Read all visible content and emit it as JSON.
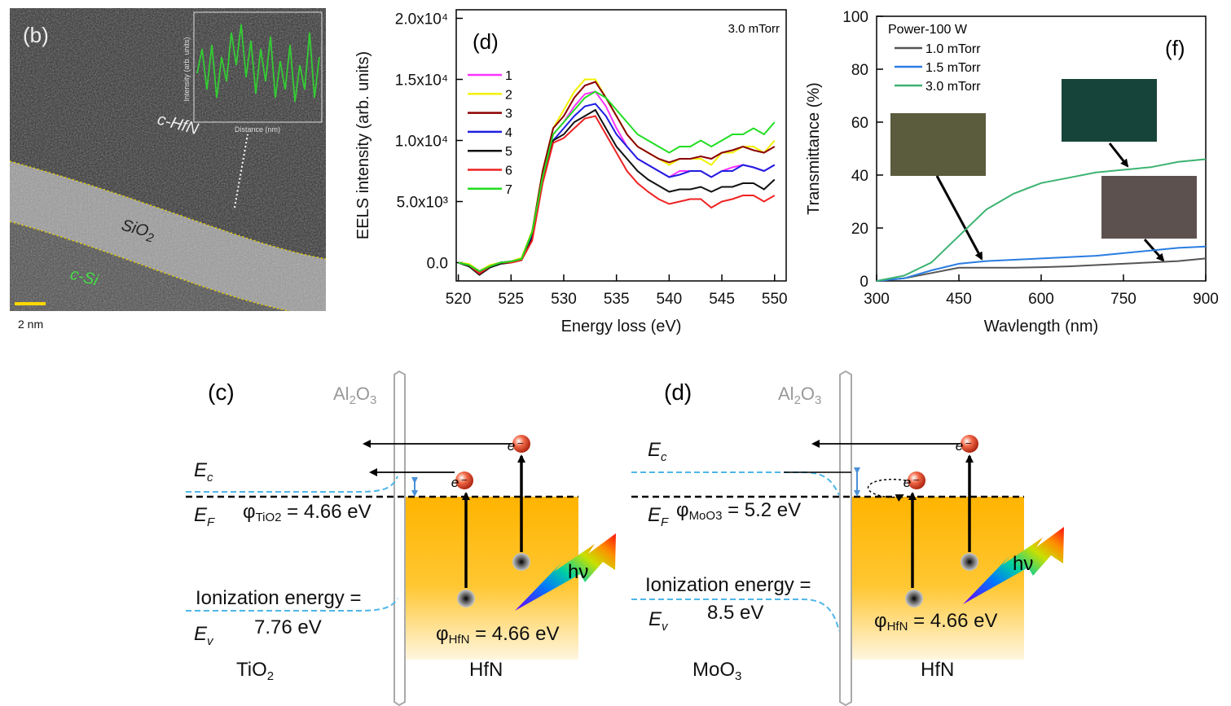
{
  "tem": {
    "label": "(b)",
    "phase_top": "c-HfN",
    "phase_mid": {
      "sym": "SiO",
      "sub": "2"
    },
    "phase_bottom": "c-Si",
    "scale_bar": "2 nm",
    "inset_ylabel": "Intensity (arb. units)",
    "inset_xlabel": "Distance (nm)"
  },
  "chart_data": [
    {
      "type": "line",
      "panel_label": "(d)",
      "annotation": "3.0 mTorr",
      "x_label": "Energy loss (eV)",
      "y_label": "EELS intensity (arb. units)",
      "xlim": [
        519.8,
        551.1
      ],
      "ylim": [
        -1500,
        20700
      ],
      "xticks": [
        520,
        525,
        530,
        535,
        540,
        545,
        550
      ],
      "yticks": [
        {
          "value": 0,
          "label": "0.0"
        },
        {
          "value": 5000,
          "label": "5.0x10³"
        },
        {
          "value": 10000,
          "label": "1.0x10⁴"
        },
        {
          "value": 15000,
          "label": "1.5x10⁴"
        },
        {
          "value": 20000,
          "label": "2.0x10⁴"
        }
      ],
      "legend": "upper left",
      "x": [
        520,
        521,
        522,
        523,
        524,
        525,
        526,
        527,
        528,
        529,
        530,
        531,
        532,
        533,
        534,
        535,
        536,
        537,
        538,
        539,
        540,
        541,
        542,
        543,
        544,
        545,
        546,
        547,
        548,
        549,
        550
      ],
      "series": [
        {
          "name": "1",
          "color": "#ff33ff",
          "values": [
            0,
            -200,
            -800,
            -300,
            0,
            100,
            300,
            2300,
            7000,
            10500,
            11500,
            12800,
            13800,
            14000,
            12800,
            11000,
            9500,
            8500,
            8000,
            7500,
            7000,
            7500,
            7500,
            7500,
            7000,
            7500,
            7800,
            8000,
            7800,
            7500,
            8000
          ]
        },
        {
          "name": "2",
          "color": "#f2f200",
          "values": [
            0,
            -100,
            -700,
            -200,
            0,
            100,
            400,
            2600,
            7500,
            11000,
            12500,
            14000,
            15000,
            15000,
            13500,
            12000,
            10500,
            9500,
            9000,
            8500,
            8000,
            8500,
            8500,
            8500,
            8000,
            9000,
            9000,
            9500,
            9500,
            9000,
            10000
          ]
        },
        {
          "name": "3",
          "color": "#8b0000",
          "values": [
            0,
            -200,
            -700,
            -300,
            0,
            100,
            300,
            2500,
            7500,
            11000,
            12000,
            13500,
            14500,
            14800,
            13500,
            12000,
            10500,
            9500,
            9000,
            8500,
            8200,
            8500,
            8500,
            8700,
            8500,
            9000,
            9200,
            9500,
            9200,
            9000,
            9500
          ]
        },
        {
          "name": "4",
          "color": "#1f1fe0",
          "values": [
            0,
            -300,
            -900,
            -300,
            0,
            100,
            200,
            2200,
            7000,
            10000,
            11000,
            12000,
            12800,
            13000,
            12000,
            10500,
            9500,
            8500,
            8000,
            7500,
            7000,
            7200,
            7500,
            7500,
            7000,
            7500,
            7500,
            8000,
            7800,
            7500,
            8000
          ]
        },
        {
          "name": "5",
          "color": "#111111",
          "values": [
            0,
            -300,
            -1000,
            -400,
            -100,
            0,
            200,
            2000,
            7000,
            10000,
            10500,
            11500,
            12000,
            12500,
            11000,
            9500,
            8500,
            7500,
            6800,
            6300,
            5800,
            6000,
            6000,
            6200,
            5800,
            6200,
            6200,
            6500,
            6500,
            6000,
            6800
          ]
        },
        {
          "name": "6",
          "color": "#ee2222",
          "values": [
            0,
            -200,
            -900,
            -300,
            0,
            0,
            200,
            1800,
            6500,
            9800,
            10200,
            11000,
            11800,
            12000,
            10500,
            9000,
            7500,
            6500,
            5800,
            5200,
            4800,
            5000,
            5200,
            5200,
            4500,
            5000,
            5200,
            5500,
            5500,
            5000,
            5500
          ]
        },
        {
          "name": "7",
          "color": "#22dd22",
          "values": [
            0,
            -200,
            -700,
            -300,
            0,
            100,
            300,
            2500,
            7000,
            10500,
            11500,
            12500,
            13500,
            14000,
            13500,
            12500,
            11500,
            10500,
            10000,
            9500,
            9000,
            9500,
            9500,
            10000,
            9500,
            10000,
            10500,
            10500,
            11000,
            10500,
            11500
          ]
        }
      ]
    },
    {
      "type": "line",
      "panel_label": "(f)",
      "x_label": "Wavlength (nm)",
      "y_label": "Transmittance (%)",
      "xlim": [
        300,
        900
      ],
      "ylim": [
        0,
        100
      ],
      "xticks": [
        300,
        450,
        600,
        750,
        900
      ],
      "yticks": [
        0,
        20,
        40,
        60,
        80,
        100
      ],
      "legend": "upper left",
      "legend_title": "Power-100 W",
      "x": [
        300,
        350,
        400,
        450,
        500,
        550,
        600,
        650,
        700,
        750,
        800,
        850,
        900
      ],
      "series": [
        {
          "name": "1.0 mTorr",
          "color": "#555555",
          "values": [
            0,
            1,
            3,
            5,
            5,
            5,
            5.2,
            5.5,
            6,
            6.5,
            7,
            7.5,
            8.5
          ]
        },
        {
          "name": "1.5 mTorr",
          "color": "#2a7de1",
          "values": [
            0,
            1,
            4,
            6.5,
            7.5,
            8,
            8.5,
            9,
            9.5,
            10.5,
            11.5,
            12.5,
            13
          ]
        },
        {
          "name": "3.0 mTorr",
          "color": "#3cb371",
          "values": [
            0,
            2,
            7,
            17,
            27,
            33,
            37,
            39,
            41,
            42,
            43,
            45,
            46
          ]
        }
      ]
    }
  ],
  "band_diagrams": [
    {
      "label": "(c)",
      "barrier": {
        "sym": "Al",
        "s1": "2",
        "mid": "O",
        "s2": "3"
      },
      "ec": {
        "sym": "E",
        "sub": "c"
      },
      "ef": {
        "sym": "E",
        "sub": "F"
      },
      "ev": {
        "sym": "E",
        "sub": "v"
      },
      "phi_left": {
        "sym": "φ",
        "sub": "TiO2",
        "rest": " = 4.66 eV"
      },
      "ionization": "Ionization energy =",
      "ionization_value": "7.76 eV",
      "left_material": {
        "sym": "TiO",
        "sub": "2"
      },
      "right_material": "HfN",
      "phi_right": {
        "sym": "φ",
        "sub": "HfN",
        "rest": " = 4.66 eV"
      },
      "photon": "hν",
      "electrons": [
        "e⁻",
        "e⁻"
      ]
    },
    {
      "label": "(d)",
      "barrier": {
        "sym": "Al",
        "s1": "2",
        "mid": "O",
        "s2": "3"
      },
      "ec": {
        "sym": "E",
        "sub": "c"
      },
      "ef": {
        "sym": "E",
        "sub": "F"
      },
      "ev": {
        "sym": "E",
        "sub": "v"
      },
      "phi_left": {
        "sym": "φ",
        "sub": "MoO3",
        "rest": " = 5.2 eV"
      },
      "ionization": "Ionization energy =",
      "ionization_value": "8.5 eV",
      "left_material": {
        "sym": "MoO",
        "sub": "3"
      },
      "right_material": "HfN",
      "phi_right": {
        "sym": "φ",
        "sub": "HfN",
        "rest": " = 4.66 eV"
      },
      "photon": "hν",
      "electrons": [
        "e⁻",
        "e⁻"
      ]
    }
  ]
}
